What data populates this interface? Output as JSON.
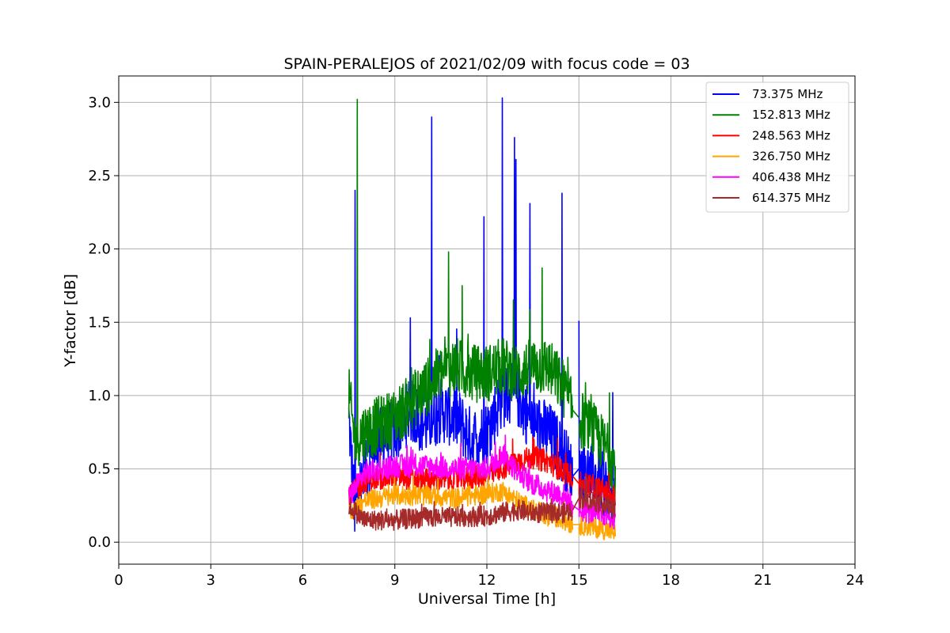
{
  "chart_data": {
    "type": "line",
    "title": "SPAIN-PERALEJOS of 2021/02/09 with focus code = 03",
    "xlabel": "Universal Time [h]",
    "ylabel": "Y-factor [dB]",
    "xlim": [
      0,
      24
    ],
    "ylim": [
      -0.15,
      3.18
    ],
    "xticks": [
      0,
      3,
      6,
      9,
      12,
      15,
      18,
      21,
      24
    ],
    "yticks": [
      0.0,
      0.5,
      1.0,
      1.5,
      2.0,
      2.5,
      3.0
    ],
    "xtick_labels": [
      "0",
      "3",
      "6",
      "9",
      "12",
      "15",
      "18",
      "21",
      "24"
    ],
    "ytick_labels": [
      "0.0",
      "0.5",
      "1.0",
      "1.5",
      "2.0",
      "2.5",
      "3.0"
    ],
    "grid": true,
    "legend_position": "top-right",
    "gap": [
      14.8,
      15.0
    ],
    "series": [
      {
        "name": "73.375 MHz",
        "color": "#0000ff",
        "x": [
          7.5,
          7.7,
          8.0,
          8.5,
          9.0,
          9.5,
          10.0,
          10.5,
          11.0,
          11.5,
          12.0,
          12.5,
          13.0,
          13.5,
          14.0,
          14.5,
          14.8,
          15.0,
          15.5,
          16.0,
          16.2
        ],
        "y": [
          0.85,
          0.2,
          0.45,
          0.7,
          0.75,
          0.9,
          0.8,
          0.9,
          0.85,
          0.7,
          0.75,
          1.0,
          1.0,
          0.8,
          0.75,
          0.6,
          0.45,
          0.5,
          0.45,
          0.35,
          0.3
        ],
        "spikes": [
          [
            7.7,
            2.4
          ],
          [
            9.5,
            1.53
          ],
          [
            10.2,
            2.9
          ],
          [
            12.5,
            3.03
          ],
          [
            12.9,
            2.76
          ],
          [
            12.95,
            2.61
          ],
          [
            13.4,
            2.31
          ],
          [
            11.9,
            2.22
          ],
          [
            14.45,
            2.38
          ],
          [
            15.0,
            1.51
          ],
          [
            16.1,
            1.02
          ]
        ]
      },
      {
        "name": "152.813 MHz",
        "color": "#008000",
        "x": [
          7.5,
          7.7,
          8.0,
          8.5,
          9.0,
          9.5,
          10.0,
          10.5,
          11.0,
          11.5,
          12.0,
          12.5,
          13.0,
          13.5,
          14.0,
          14.5,
          14.8,
          15.0,
          15.5,
          16.0,
          16.2
        ],
        "y": [
          1.0,
          0.7,
          0.75,
          0.8,
          0.85,
          0.95,
          1.05,
          1.15,
          1.2,
          1.15,
          1.15,
          1.2,
          1.15,
          1.2,
          1.2,
          1.05,
          0.9,
          0.85,
          0.75,
          0.6,
          0.5
        ],
        "spikes": [
          [
            7.78,
            3.02
          ],
          [
            10.75,
            1.98
          ],
          [
            13.8,
            1.87
          ],
          [
            11.2,
            1.75
          ]
        ]
      },
      {
        "name": "248.563 MHz",
        "color": "#ff0000",
        "x": [
          7.5,
          8.0,
          9.0,
          10.0,
          11.0,
          12.0,
          12.5,
          13.0,
          13.5,
          14.0,
          14.5,
          14.8,
          15.0,
          15.5,
          16.0,
          16.2
        ],
        "y": [
          0.3,
          0.42,
          0.45,
          0.42,
          0.43,
          0.45,
          0.5,
          0.55,
          0.58,
          0.55,
          0.48,
          0.45,
          0.4,
          0.38,
          0.33,
          0.3
        ],
        "spikes": [
          [
            13.5,
            0.72
          ],
          [
            14.3,
            0.71
          ]
        ]
      },
      {
        "name": "326.750 MHz",
        "color": "#ffa500",
        "x": [
          7.5,
          8.0,
          9.0,
          10.0,
          11.0,
          12.0,
          12.5,
          13.0,
          13.5,
          14.0,
          14.5,
          14.8,
          15.0,
          15.5,
          16.0,
          16.2
        ],
        "y": [
          0.2,
          0.28,
          0.32,
          0.32,
          0.3,
          0.33,
          0.35,
          0.28,
          0.22,
          0.18,
          0.15,
          0.12,
          0.12,
          0.1,
          0.08,
          0.06
        ],
        "spikes": [
          [
            9.6,
            0.45
          ]
        ]
      },
      {
        "name": "406.438 MHz",
        "color": "#ff00ff",
        "x": [
          7.5,
          8.0,
          9.0,
          10.0,
          11.0,
          12.0,
          12.5,
          13.0,
          13.5,
          14.0,
          14.5,
          14.8,
          15.0,
          15.5,
          16.0,
          16.2
        ],
        "y": [
          0.3,
          0.47,
          0.52,
          0.52,
          0.5,
          0.5,
          0.6,
          0.48,
          0.4,
          0.35,
          0.32,
          0.25,
          0.22,
          0.2,
          0.18,
          0.15
        ],
        "spikes": [
          [
            12.6,
            0.73
          ],
          [
            9.4,
            0.66
          ]
        ]
      },
      {
        "name": "614.375 MHz",
        "color": "#a52a2a",
        "x": [
          7.5,
          8.0,
          9.0,
          10.0,
          11.0,
          12.0,
          12.5,
          13.0,
          13.5,
          14.0,
          14.5,
          14.8,
          15.0,
          15.5,
          16.0,
          16.2
        ],
        "y": [
          0.25,
          0.15,
          0.15,
          0.17,
          0.17,
          0.18,
          0.2,
          0.22,
          0.2,
          0.2,
          0.2,
          0.22,
          0.3,
          0.28,
          0.24,
          0.22
        ],
        "spikes": [
          [
            15.1,
            0.4
          ]
        ]
      }
    ]
  }
}
